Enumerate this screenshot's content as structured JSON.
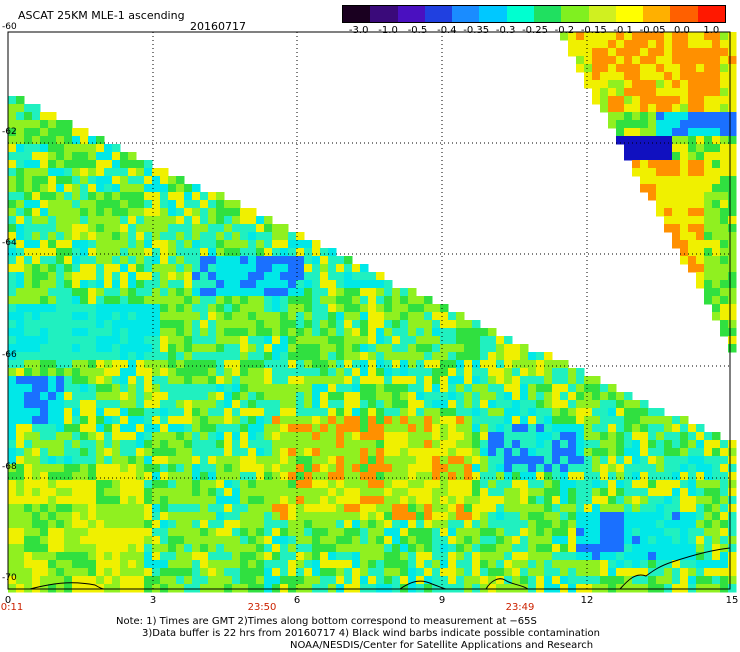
{
  "header": {
    "title": "ASCAT 25KM MLE-1 ascending",
    "date": "20160717"
  },
  "colorbar": {
    "labels": [
      "-3.0",
      "-1.0",
      "-0.5",
      "-0.4",
      "-0.35",
      "-0.3",
      "-0.25",
      "-0.2",
      "-0.15",
      "-0.1",
      "-0.05",
      "0.0",
      "1.0"
    ],
    "colors": [
      "#1a0020",
      "#3a0a7a",
      "#4a10c0",
      "#2040e0",
      "#1a8cff",
      "#00c8ff",
      "#00ffd0",
      "#20e060",
      "#80f020",
      "#d0f020",
      "#ffff00",
      "#ffb000",
      "#ff6000",
      "#ff1800"
    ]
  },
  "map": {
    "y_axis_labels": [
      "-60",
      "-62",
      "-64",
      "-66",
      "-68",
      "-70"
    ],
    "x_axis_labels": [
      "0",
      "3",
      "6",
      "9",
      "12",
      "15"
    ],
    "time_labels": [
      "0:11",
      "23:50",
      "23:49"
    ],
    "colors": {
      "blue": "#1a70ff",
      "cyan": "#00e8e8",
      "aqua": "#20f0c0",
      "green": "#30e040",
      "lime": "#90f020",
      "yellow": "#f0f000",
      "orange": "#ff9000",
      "deep_blue": "#1010c0"
    }
  },
  "notes": {
    "line1": "Note: 1) Times are GMT 2)Times along bottom correspond to measurement at −65S",
    "line2": "3)Data buffer is 22 hrs from 20160717 4) Black wind barbs indicate possible contamination",
    "line3": "NOAA/NESDIS/Center for Satellite Applications and Research"
  }
}
